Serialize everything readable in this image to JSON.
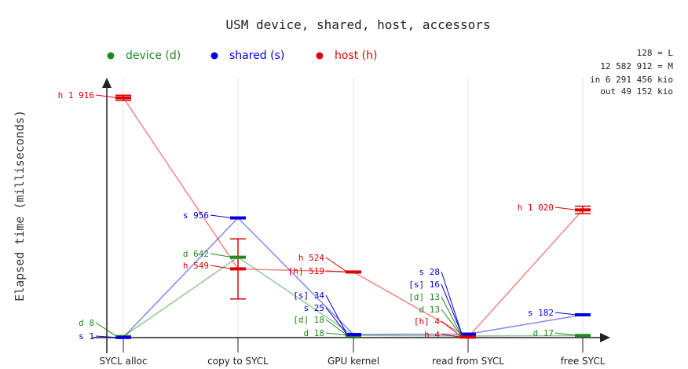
{
  "chart_data": {
    "type": "line",
    "title": "USM device, shared, host, accessors",
    "ylabel": "Elapsed time (milliseconds)",
    "xlabel": "",
    "categories": [
      "SYCL alloc",
      "copy to SYCL",
      "GPU kernel",
      "read from SYCL",
      "free SYCL"
    ],
    "ylim": [
      0,
      1916
    ],
    "grid": true,
    "legend_position": "top",
    "series": [
      {
        "name": "device (d)",
        "color": "#1e8a1e",
        "values": [
          8,
          642,
          18,
          13,
          17
        ],
        "errors": [
          0,
          0,
          0,
          0,
          0
        ],
        "labels": [
          "d 8",
          "d 642",
          "d 18",
          "d 13",
          "d 17"
        ]
      },
      {
        "name": "shared (s)",
        "color": "#0000dd",
        "values": [
          1,
          956,
          25,
          28,
          182
        ],
        "errors": [
          0,
          0,
          0,
          0,
          0
        ],
        "labels": [
          "s 1",
          "s 956",
          "s 25",
          "s 28",
          "s 182"
        ]
      },
      {
        "name": "host (h)",
        "color": "#dd0000",
        "values": [
          1916,
          549,
          524,
          4,
          1020
        ],
        "errors": [
          20,
          240,
          0,
          0,
          30
        ],
        "labels": [
          "h 1 916",
          "h 549",
          "h 524",
          "h 4",
          "h 1 020"
        ]
      }
    ],
    "accessor_labels": [
      {
        "text": "[s] 34",
        "series": 1,
        "category": 2
      },
      {
        "text": "[d] 18",
        "series": 0,
        "category": 2
      },
      {
        "text": "[h] 519",
        "series": 2,
        "category": 2
      },
      {
        "text": "[s] 16",
        "series": 1,
        "category": 3
      },
      {
        "text": "[d] 13",
        "series": 0,
        "category": 3
      },
      {
        "text": "[h] 4",
        "series": 2,
        "category": 3
      }
    ],
    "info_lines": [
      "128 = L",
      "12 582 912 = M",
      "in 6 291 456 kio",
      "out 49 152 kio"
    ]
  }
}
